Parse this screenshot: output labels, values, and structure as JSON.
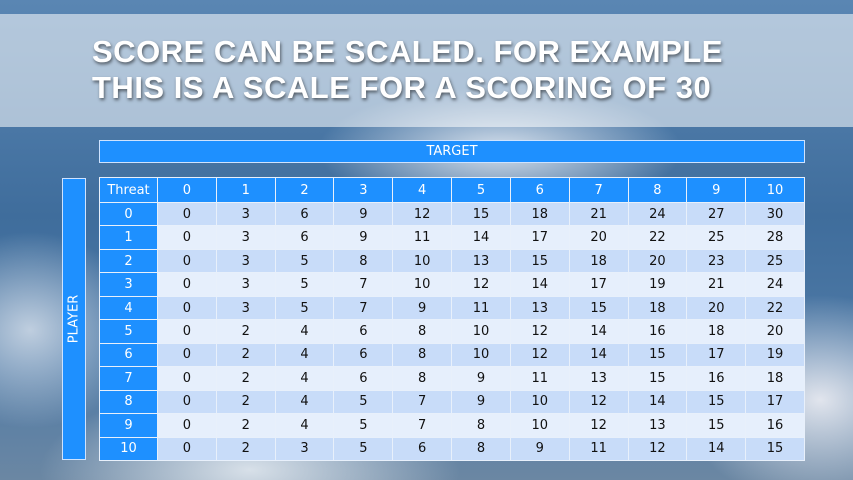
{
  "slide": {
    "title_lines": [
      "SCORE CAN BE SCALED. FOR EXAMPLE",
      "THIS IS A SCALE FOR A SCORING OF 30"
    ],
    "target_label": "TARGET",
    "player_label": "PLAYER"
  },
  "colors": {
    "accent": "#1e90ff",
    "row_dark": "#c8dcf9",
    "row_light": "#e6effc"
  },
  "table": {
    "corner": "Threat",
    "columns": [
      "0",
      "1",
      "2",
      "3",
      "4",
      "5",
      "6",
      "7",
      "8",
      "9",
      "10"
    ],
    "rows": [
      {
        "label": "0",
        "cells": [
          "0",
          "3",
          "6",
          "9",
          "12",
          "15",
          "18",
          "21",
          "24",
          "27",
          "30"
        ]
      },
      {
        "label": "1",
        "cells": [
          "0",
          "3",
          "6",
          "9",
          "11",
          "14",
          "17",
          "20",
          "22",
          "25",
          "28"
        ]
      },
      {
        "label": "2",
        "cells": [
          "0",
          "3",
          "5",
          "8",
          "10",
          "13",
          "15",
          "18",
          "20",
          "23",
          "25"
        ]
      },
      {
        "label": "3",
        "cells": [
          "0",
          "3",
          "5",
          "7",
          "10",
          "12",
          "14",
          "17",
          "19",
          "21",
          "24"
        ]
      },
      {
        "label": "4",
        "cells": [
          "0",
          "3",
          "5",
          "7",
          "9",
          "11",
          "13",
          "15",
          "18",
          "20",
          "22"
        ]
      },
      {
        "label": "5",
        "cells": [
          "0",
          "2",
          "4",
          "6",
          "8",
          "10",
          "12",
          "14",
          "16",
          "18",
          "20"
        ]
      },
      {
        "label": "6",
        "cells": [
          "0",
          "2",
          "4",
          "6",
          "8",
          "10",
          "12",
          "14",
          "15",
          "17",
          "19"
        ]
      },
      {
        "label": "7",
        "cells": [
          "0",
          "2",
          "4",
          "6",
          "8",
          "9",
          "11",
          "13",
          "15",
          "16",
          "18"
        ]
      },
      {
        "label": "8",
        "cells": [
          "0",
          "2",
          "4",
          "5",
          "7",
          "9",
          "10",
          "12",
          "14",
          "15",
          "17"
        ]
      },
      {
        "label": "9",
        "cells": [
          "0",
          "2",
          "4",
          "5",
          "7",
          "8",
          "10",
          "12",
          "13",
          "15",
          "16"
        ]
      },
      {
        "label": "10",
        "cells": [
          "0",
          "2",
          "3",
          "5",
          "6",
          "8",
          "9",
          "11",
          "12",
          "14",
          "15"
        ]
      }
    ]
  }
}
